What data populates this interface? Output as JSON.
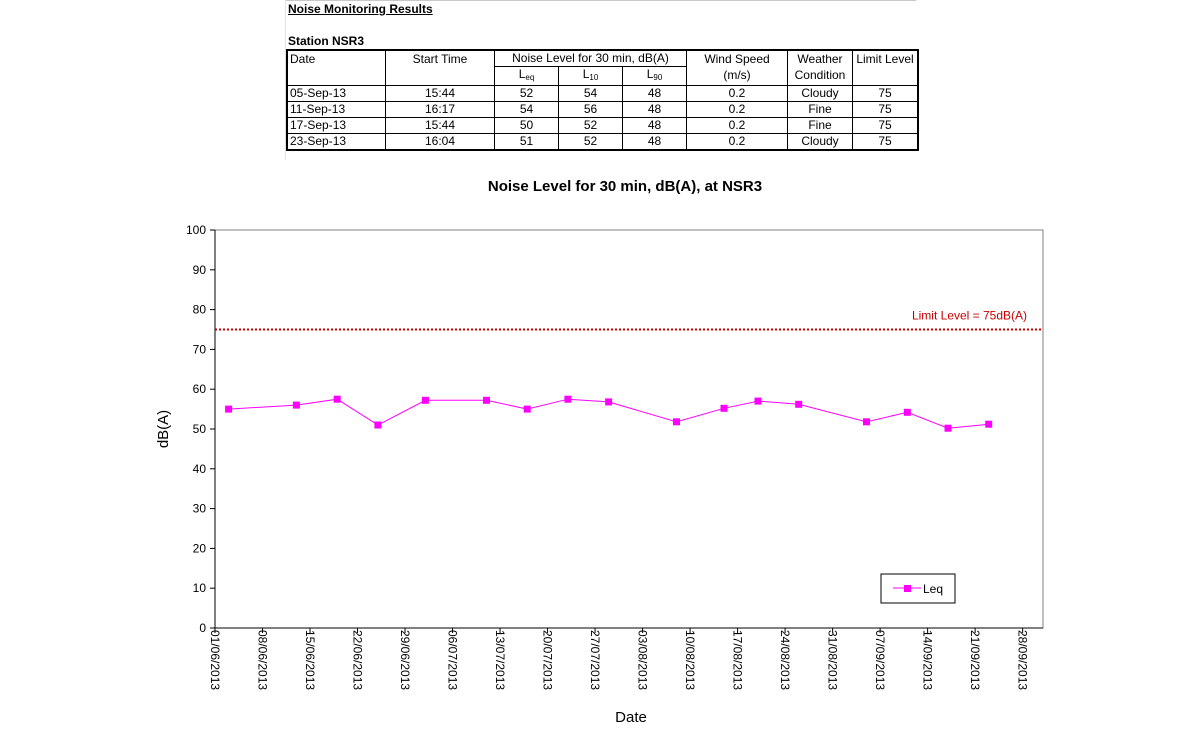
{
  "sheet": {
    "heading": "Noise Monitoring Results",
    "station": "Station NSR3"
  },
  "table": {
    "headers": {
      "date": "Date",
      "start_time": "Start Time",
      "noise_group": "Noise Level for 30 min, dB(A)",
      "leq_base": "L",
      "leq_sub": "eq",
      "l10_base": "L",
      "l10_sub": "10",
      "l90_base": "L",
      "l90_sub": "90",
      "wind_line1": "Wind Speed",
      "wind_line2": "(m/s)",
      "weather_line1": "Weather",
      "weather_line2": "Condition",
      "limit": "Limit Level"
    },
    "rows": [
      {
        "date": "05-Sep-13",
        "time": "15:44",
        "leq": "52",
        "l10": "54",
        "l90": "48",
        "wind": "0.2",
        "weather": "Cloudy",
        "limit": "75"
      },
      {
        "date": "11-Sep-13",
        "time": "16:17",
        "leq": "54",
        "l10": "56",
        "l90": "48",
        "wind": "0.2",
        "weather": "Fine",
        "limit": "75"
      },
      {
        "date": "17-Sep-13",
        "time": "15:44",
        "leq": "50",
        "l10": "52",
        "l90": "48",
        "wind": "0.2",
        "weather": "Fine",
        "limit": "75"
      },
      {
        "date": "23-Sep-13",
        "time": "16:04",
        "leq": "51",
        "l10": "52",
        "l90": "48",
        "wind": "0.2",
        "weather": "Cloudy",
        "limit": "75"
      }
    ]
  },
  "chart_data": {
    "type": "line",
    "title": "Noise Level for 30 min, dB(A), at NSR3",
    "xlabel": "Date",
    "ylabel": "dB(A)",
    "ylim": [
      0,
      100
    ],
    "yticks": [
      0,
      10,
      20,
      30,
      40,
      50,
      60,
      70,
      80,
      90,
      100
    ],
    "xlim": [
      "2013-06-01",
      "2013-10-01"
    ],
    "xtick_labels": [
      "01/06/2013",
      "08/06/2013",
      "15/06/2013",
      "22/06/2013",
      "29/06/2013",
      "06/07/2013",
      "13/07/2013",
      "20/07/2013",
      "27/07/2013",
      "03/08/2013",
      "10/08/2013",
      "17/08/2013",
      "24/08/2013",
      "31/08/2013",
      "07/09/2013",
      "14/09/2013",
      "21/09/2013",
      "28/09/2013"
    ],
    "grid": false,
    "legend": "bottom-right",
    "series": [
      {
        "name": "Leq",
        "color": "#ff00ff",
        "marker": "square",
        "x": [
          "2013-06-03",
          "2013-06-13",
          "2013-06-19",
          "2013-06-25",
          "2013-07-02",
          "2013-07-11",
          "2013-07-17",
          "2013-07-23",
          "2013-07-29",
          "2013-08-08",
          "2013-08-15",
          "2013-08-20",
          "2013-08-26",
          "2013-09-05",
          "2013-09-11",
          "2013-09-17",
          "2013-09-23"
        ],
        "y": [
          55,
          56,
          57.5,
          51,
          57.2,
          57.2,
          55,
          57.5,
          56.8,
          51.8,
          55.2,
          57,
          56.2,
          51.8,
          54.2,
          50.2,
          51.2
        ]
      }
    ],
    "reference_line": {
      "y": 75,
      "label": "Limit Level  = 75dB(A)",
      "color": "#cc0000",
      "style": "dotted"
    }
  }
}
